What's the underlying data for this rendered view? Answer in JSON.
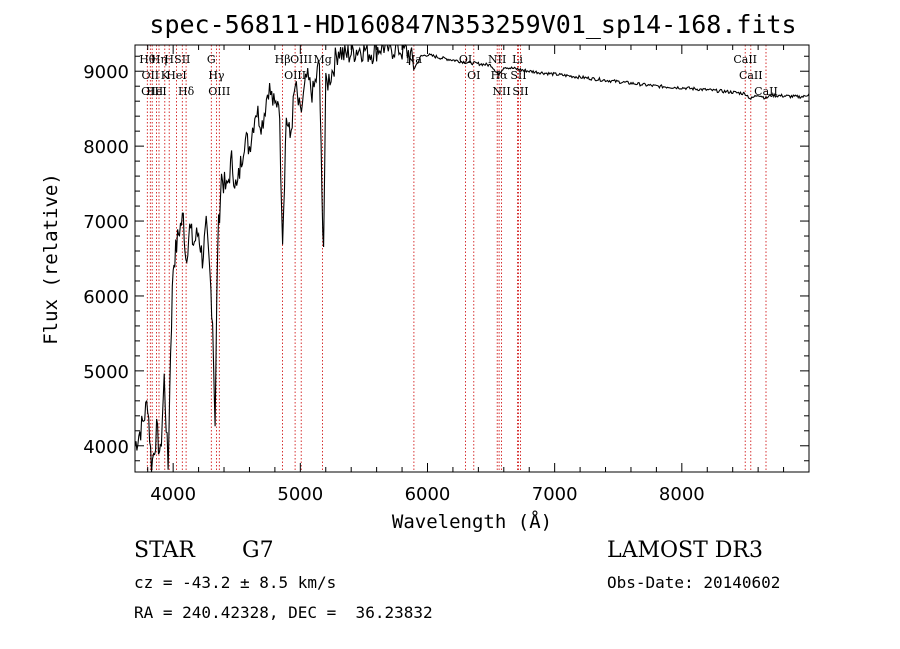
{
  "chart_data": {
    "type": "line",
    "title": "spec-56811-HD160847N353259V01_sp14-168.fits",
    "xlabel": "Wavelength (Å)",
    "ylabel": "Flux (relative)",
    "xlim": [
      3700,
      9000
    ],
    "ylim": [
      3650,
      9350
    ],
    "x_ticks": [
      4000,
      5000,
      6000,
      7000,
      8000
    ],
    "x_tick_labels": [
      "4000",
      "5000",
      "6000",
      "7000",
      "8000"
    ],
    "y_ticks": [
      4000,
      5000,
      6000,
      7000,
      8000,
      9000
    ],
    "y_tick_labels": [
      "4000",
      "5000",
      "6000",
      "7000",
      "8000",
      "9000"
    ],
    "grid": false,
    "line_color": "#000000",
    "marker_color": "#cc0000",
    "series": [
      {
        "x": [
          3700,
          3760,
          3800,
          3830,
          3870,
          3900,
          3930,
          3960,
          3980,
          4000,
          4020,
          4050,
          4080,
          4100,
          4130,
          4160,
          4200,
          4230,
          4260,
          4290,
          4310,
          4330,
          4350,
          4380,
          4420,
          4460,
          4500,
          4560,
          4600,
          4650,
          4700,
          4750,
          4800,
          4830,
          4861,
          4890,
          4920,
          4960,
          5000,
          5050,
          5100,
          5150,
          5170,
          5183,
          5200,
          5250,
          5300,
          5350,
          5400,
          5450,
          5500,
          5550,
          5600,
          5650,
          5700,
          5750,
          5800,
          5850,
          5900,
          5950,
          6000,
          6100,
          6200,
          6300,
          6400,
          6500,
          6563,
          6600,
          6700,
          6800,
          6900,
          7000,
          7200,
          7400,
          7600,
          7800,
          8000,
          8200,
          8400,
          8500,
          8542,
          8600,
          8662,
          8700,
          8800,
          8900,
          8960,
          9000
        ],
        "y": [
          4000,
          4300,
          4600,
          3700,
          4200,
          3850,
          4900,
          3700,
          5300,
          6400,
          6600,
          6900,
          7050,
          6500,
          6900,
          6700,
          6850,
          6500,
          6900,
          6250,
          5700,
          4300,
          6700,
          7600,
          7400,
          7800,
          7400,
          8100,
          8000,
          8500,
          8300,
          8800,
          8500,
          8700,
          6800,
          8400,
          8100,
          8800,
          8400,
          8900,
          8700,
          9100,
          7300,
          6700,
          8800,
          9000,
          9300,
          9200,
          9250,
          9300,
          9300,
          9250,
          9300,
          9350,
          9300,
          9330,
          9280,
          9250,
          9050,
          9200,
          9220,
          9180,
          9150,
          9120,
          9100,
          9080,
          8950,
          9060,
          9030,
          9000,
          8980,
          8960,
          8920,
          8880,
          8840,
          8800,
          8780,
          8750,
          8720,
          8700,
          8630,
          8690,
          8640,
          8680,
          8670,
          8660,
          8660,
          8700
        ]
      }
    ],
    "line_markers": [
      {
        "x": 3797,
        "label": "Hθ"
      },
      {
        "x": 3820,
        "label": "OII"
      },
      {
        "x": 3835,
        "label": "OIII"
      },
      {
        "x": 3869,
        "label": "HeI"
      },
      {
        "x": 3889,
        "label": "Hη"
      },
      {
        "x": 3934,
        "label": "K"
      },
      {
        "x": 3969,
        "label": "H"
      },
      {
        "x": 4026,
        "label": "HeI"
      },
      {
        "x": 4072,
        "label": "SII"
      },
      {
        "x": 4102,
        "label": "Hδ"
      },
      {
        "x": 4300,
        "label": "G"
      },
      {
        "x": 4340,
        "label": "Hγ"
      },
      {
        "x": 4363,
        "label": "OIII"
      },
      {
        "x": 4861,
        "label": "Hβ"
      },
      {
        "x": 4959,
        "label": "OIII"
      },
      {
        "x": 5007,
        "label": "OIII"
      },
      {
        "x": 5175,
        "label": "Mg"
      },
      {
        "x": 5893,
        "label": "Na"
      },
      {
        "x": 6300,
        "label": "OI"
      },
      {
        "x": 6364,
        "label": "OI"
      },
      {
        "x": 6548,
        "label": "NII"
      },
      {
        "x": 6563,
        "label": "Hα"
      },
      {
        "x": 6583,
        "label": "NII"
      },
      {
        "x": 6708,
        "label": "Li"
      },
      {
        "x": 6716,
        "label": "SII"
      },
      {
        "x": 6731,
        "label": "SII"
      },
      {
        "x": 8498,
        "label": "CaII"
      },
      {
        "x": 8542,
        "label": "CaII"
      },
      {
        "x": 8662,
        "label": "CaII"
      }
    ]
  },
  "info": {
    "object_class": "STAR",
    "subclass": "G7",
    "survey": "LAMOST DR3",
    "cz": "cz = -43.2 ± 8.5 km/s",
    "obs_date": "Obs-Date: 20140602",
    "coords": "RA = 240.42328, DEC =  36.23832"
  }
}
